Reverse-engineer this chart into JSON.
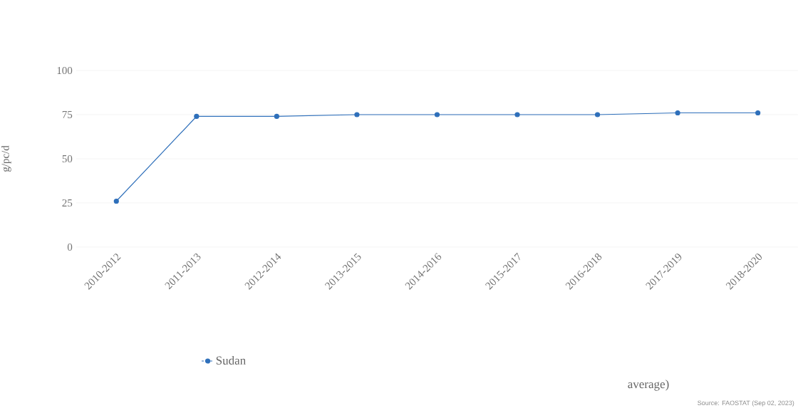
{
  "chart_data": {
    "type": "line",
    "ylabel": "g/pc/d",
    "categories": [
      "2010-2012",
      "2011-2013",
      "2012-2014",
      "2013-2015",
      "2014-2016",
      "2015-2017",
      "2016-2018",
      "2017-2019",
      "2018-2020"
    ],
    "series": [
      {
        "name": "Sudan",
        "color": "#2e6fba",
        "values": [
          26,
          74,
          74,
          75,
          75,
          75,
          75,
          76,
          76
        ]
      }
    ],
    "ylim": [
      0,
      100
    ],
    "yticks": [
      0,
      25,
      50,
      75,
      100
    ],
    "grid": "y",
    "legend": "bottom",
    "marker": "circle",
    "line_style": "solid",
    "annotations": [
      "average)",
      "Source: FAOSTAT (Sep 02, 2023)"
    ]
  }
}
